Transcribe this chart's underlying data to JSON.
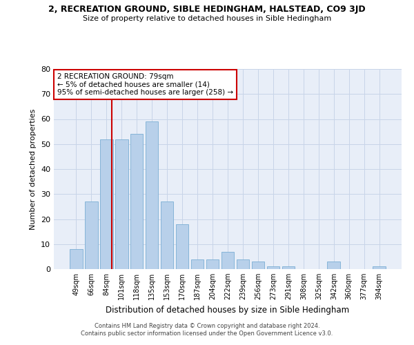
{
  "title_line1": "2, RECREATION GROUND, SIBLE HEDINGHAM, HALSTEAD, CO9 3JD",
  "title_line2": "Size of property relative to detached houses in Sible Hedingham",
  "xlabel": "Distribution of detached houses by size in Sible Hedingham",
  "ylabel": "Number of detached properties",
  "footer_line1": "Contains HM Land Registry data © Crown copyright and database right 2024.",
  "footer_line2": "Contains public sector information licensed under the Open Government Licence v3.0.",
  "categories": [
    "49sqm",
    "66sqm",
    "84sqm",
    "101sqm",
    "118sqm",
    "135sqm",
    "153sqm",
    "170sqm",
    "187sqm",
    "204sqm",
    "222sqm",
    "239sqm",
    "256sqm",
    "273sqm",
    "291sqm",
    "308sqm",
    "325sqm",
    "342sqm",
    "360sqm",
    "377sqm",
    "394sqm"
  ],
  "values": [
    8,
    27,
    52,
    52,
    54,
    59,
    27,
    18,
    4,
    4,
    7,
    4,
    3,
    1,
    1,
    0,
    0,
    3,
    0,
    0,
    1
  ],
  "bar_color": "#b8d0ea",
  "bar_edge_color": "#7aadd4",
  "grid_color": "#c8d4e8",
  "bg_color": "#e8eef8",
  "annotation_text": "2 RECREATION GROUND: 79sqm\n← 5% of detached houses are smaller (14)\n95% of semi-detached houses are larger (258) →",
  "annotation_box_color": "#ffffff",
  "annotation_box_edge": "#cc0000",
  "vline_color": "#cc0000",
  "ylim": [
    0,
    80
  ],
  "yticks": [
    0,
    10,
    20,
    30,
    40,
    50,
    60,
    70,
    80
  ],
  "property_bin_index": 2
}
